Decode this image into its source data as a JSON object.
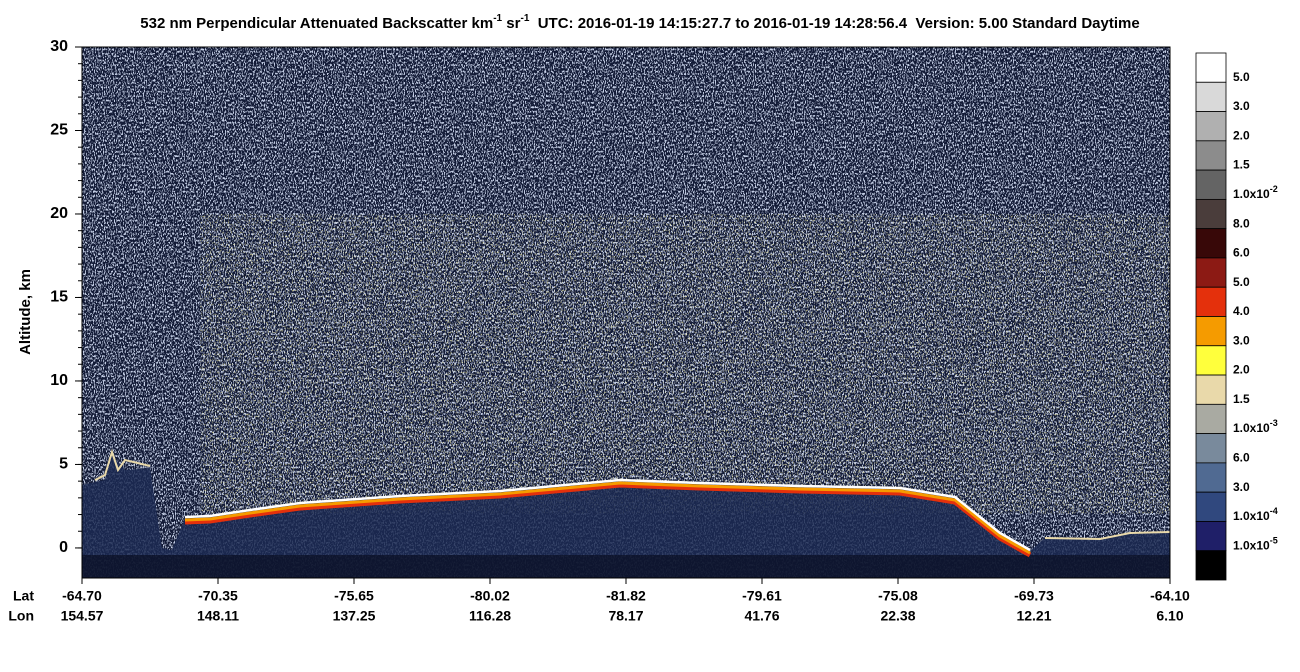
{
  "chart_data": {
    "type": "heatmap",
    "title": [
      "532 nm Perpendicular Attenuated Backscatter km",
      "-1",
      " sr",
      "-1",
      "  UTC: 2016-01-19 14:15:27.7 to 2016-01-19 14:28:56.4  Version: 5.00 Standard Daytime"
    ],
    "y_label": "Altitude, km",
    "ylim": [
      -1.8,
      30
    ],
    "yticks": [
      0,
      5,
      10,
      15,
      20,
      25,
      30
    ],
    "x_row_labels": [
      "Lat",
      "Lon"
    ],
    "lat_labels": [
      "-64.70",
      "-70.35",
      "-75.65",
      "-80.02",
      "-81.82",
      "-79.61",
      "-75.08",
      "-69.73",
      "-64.10"
    ],
    "lon_labels": [
      "154.57",
      "148.11",
      "137.25",
      "116.28",
      "78.17",
      "41.76",
      "22.38",
      "12.21",
      "6.10"
    ],
    "colorbar": {
      "colors": [
        "#ffffff",
        "#d9d9d9",
        "#b0b0b0",
        "#8c8c8c",
        "#646464",
        "#4a3d3b",
        "#380808",
        "#8c1a14",
        "#e4300c",
        "#f59b00",
        "#ffff3c",
        "#e9d9aa",
        "#a9aaa2",
        "#798a9c",
        "#506a92",
        "#30487e",
        "#1f1f68",
        "#000000"
      ],
      "labels": [
        {
          "text": "5.0"
        },
        {
          "text": "3.0"
        },
        {
          "text": "2.0"
        },
        {
          "text": "1.5"
        },
        {
          "text": "1.0x10",
          "exp": "-2"
        },
        {
          "text": "8.0"
        },
        {
          "text": "6.0"
        },
        {
          "text": "5.0"
        },
        {
          "text": "4.0"
        },
        {
          "text": "3.0"
        },
        {
          "text": "2.0"
        },
        {
          "text": "1.5"
        },
        {
          "text": "1.0x10",
          "exp": "-3"
        },
        {
          "text": "6.0"
        },
        {
          "text": "3.0"
        },
        {
          "text": "1.0x10",
          "exp": "-4"
        },
        {
          "text": "1.0x10",
          "exp": "-5"
        }
      ]
    }
  }
}
